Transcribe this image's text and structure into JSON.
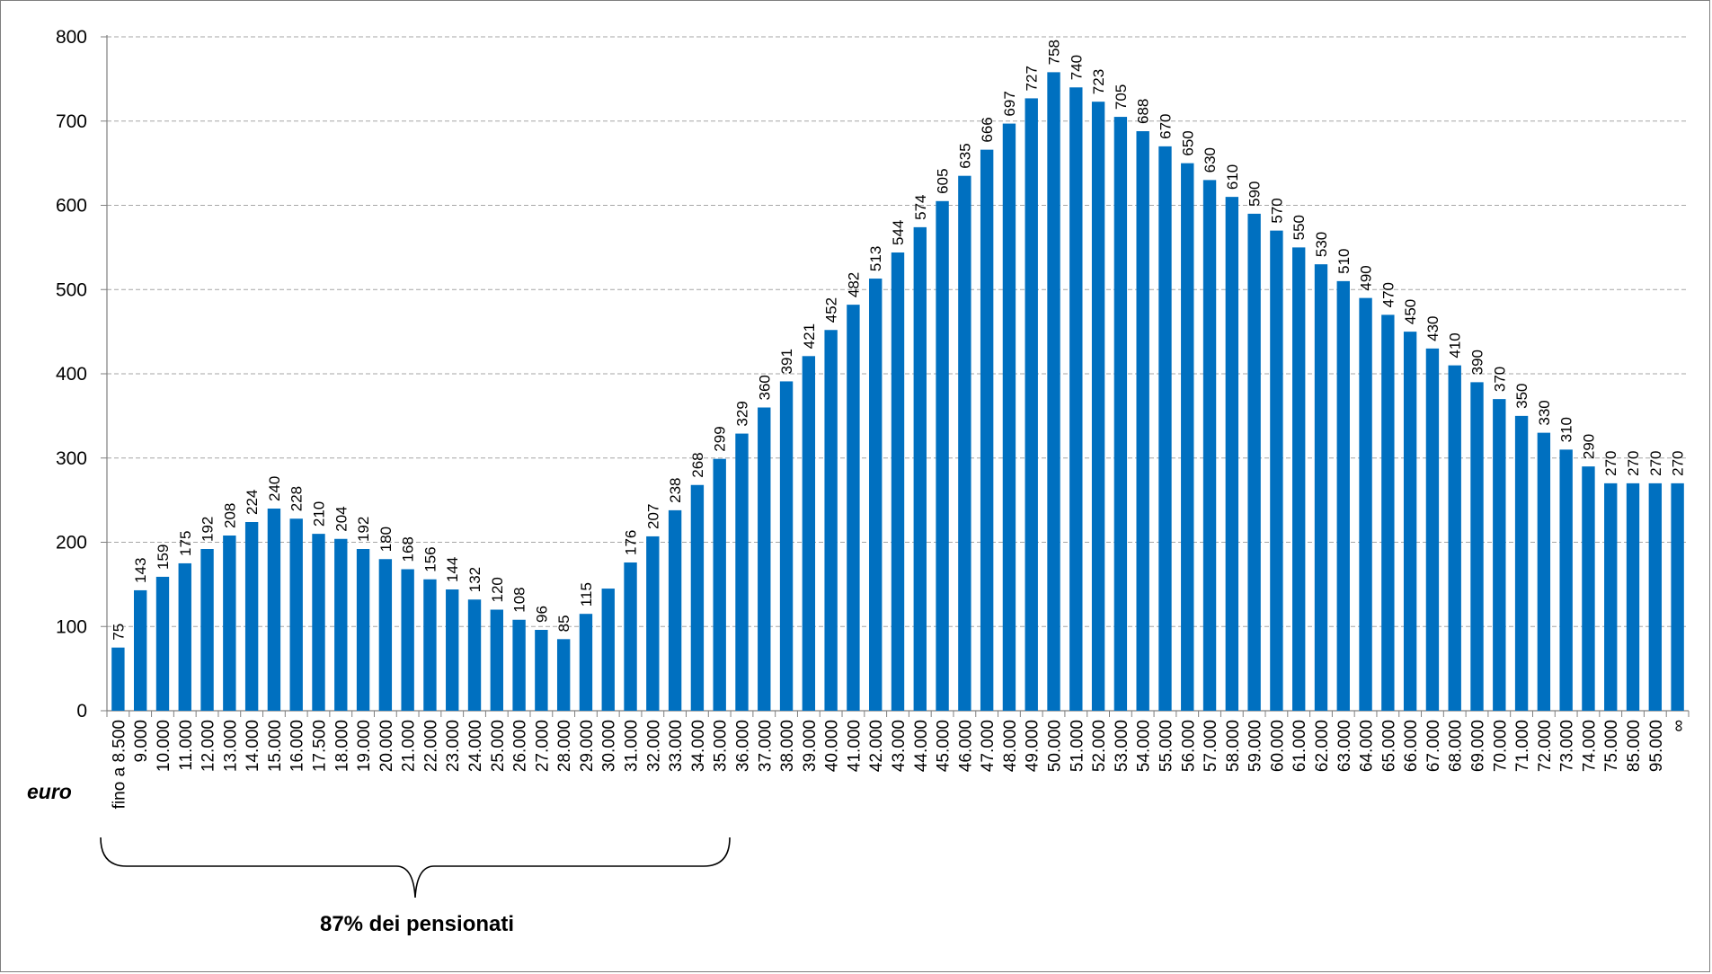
{
  "chart_data": {
    "type": "bar",
    "title": "",
    "xlabel": "euro",
    "ylabel": "",
    "ylim": [
      0,
      800
    ],
    "yticks": [
      0,
      100,
      200,
      300,
      400,
      500,
      600,
      700,
      800
    ],
    "grid": true,
    "legend": "none",
    "bar_color": "#0070c0",
    "categories": [
      "fino a 8.500",
      "9.000",
      "10.000",
      "11.000",
      "12.000",
      "13.000",
      "14.000",
      "15.000",
      "16.000",
      "17.500",
      "18.000",
      "19.000",
      "20.000",
      "21.000",
      "22.000",
      "23.000",
      "24.000",
      "25.000",
      "26.000",
      "27.000",
      "28.000",
      "29.000",
      "30.000",
      "31.000",
      "32.000",
      "33.000",
      "34.000",
      "35.000",
      "36.000",
      "37.000",
      "38.000",
      "39.000",
      "40.000",
      "41.000",
      "42.000",
      "43.000",
      "44.000",
      "45.000",
      "46.000",
      "47.000",
      "48.000",
      "49.000",
      "50.000",
      "51.000",
      "52.000",
      "53.000",
      "54.000",
      "55.000",
      "56.000",
      "57.000",
      "58.000",
      "59.000",
      "60.000",
      "61.000",
      "62.000",
      "63.000",
      "64.000",
      "65.000",
      "66.000",
      "67.000",
      "68.000",
      "69.000",
      "70.000",
      "71.000",
      "72.000",
      "73.000",
      "74.000",
      "75.000",
      "85.000",
      "95.000",
      "∞"
    ],
    "values": [
      75,
      143,
      159,
      175,
      192,
      208,
      224,
      240,
      228,
      210,
      204,
      192,
      180,
      168,
      156,
      144,
      132,
      120,
      108,
      96,
      85,
      115,
      145,
      176,
      207,
      238,
      268,
      299,
      329,
      360,
      391,
      421,
      452,
      482,
      513,
      544,
      574,
      605,
      635,
      666,
      697,
      727,
      758,
      740,
      723,
      705,
      688,
      670,
      650,
      630,
      610,
      590,
      570,
      550,
      530,
      510,
      490,
      470,
      450,
      430,
      410,
      390,
      370,
      350,
      330,
      310,
      290,
      270,
      270,
      270,
      270
    ],
    "data_labels": [
      "75",
      "143",
      "159",
      "175",
      "192",
      "208",
      "224",
      "240",
      "228",
      "210",
      "204",
      "192",
      "180",
      "168",
      "156",
      "144",
      "132",
      "120",
      "108",
      "96",
      "85",
      "115",
      "",
      "176",
      "207",
      "238",
      "268",
      "299",
      "329",
      "360",
      "391",
      "421",
      "452",
      "482",
      "513",
      "544",
      "574",
      "605",
      "635",
      "666",
      "697",
      "727",
      "758",
      "740",
      "723",
      "705",
      "688",
      "670",
      "650",
      "630",
      "610",
      "590",
      "570",
      "550",
      "530",
      "510",
      "490",
      "470",
      "450",
      "430",
      "410",
      "390",
      "370",
      "350",
      "330",
      "310",
      "290",
      "270",
      "270",
      "270",
      "270"
    ],
    "annotation": {
      "text": "87% dei pensionati",
      "from_category": "fino a 8.500",
      "to_category": "35.000"
    }
  }
}
